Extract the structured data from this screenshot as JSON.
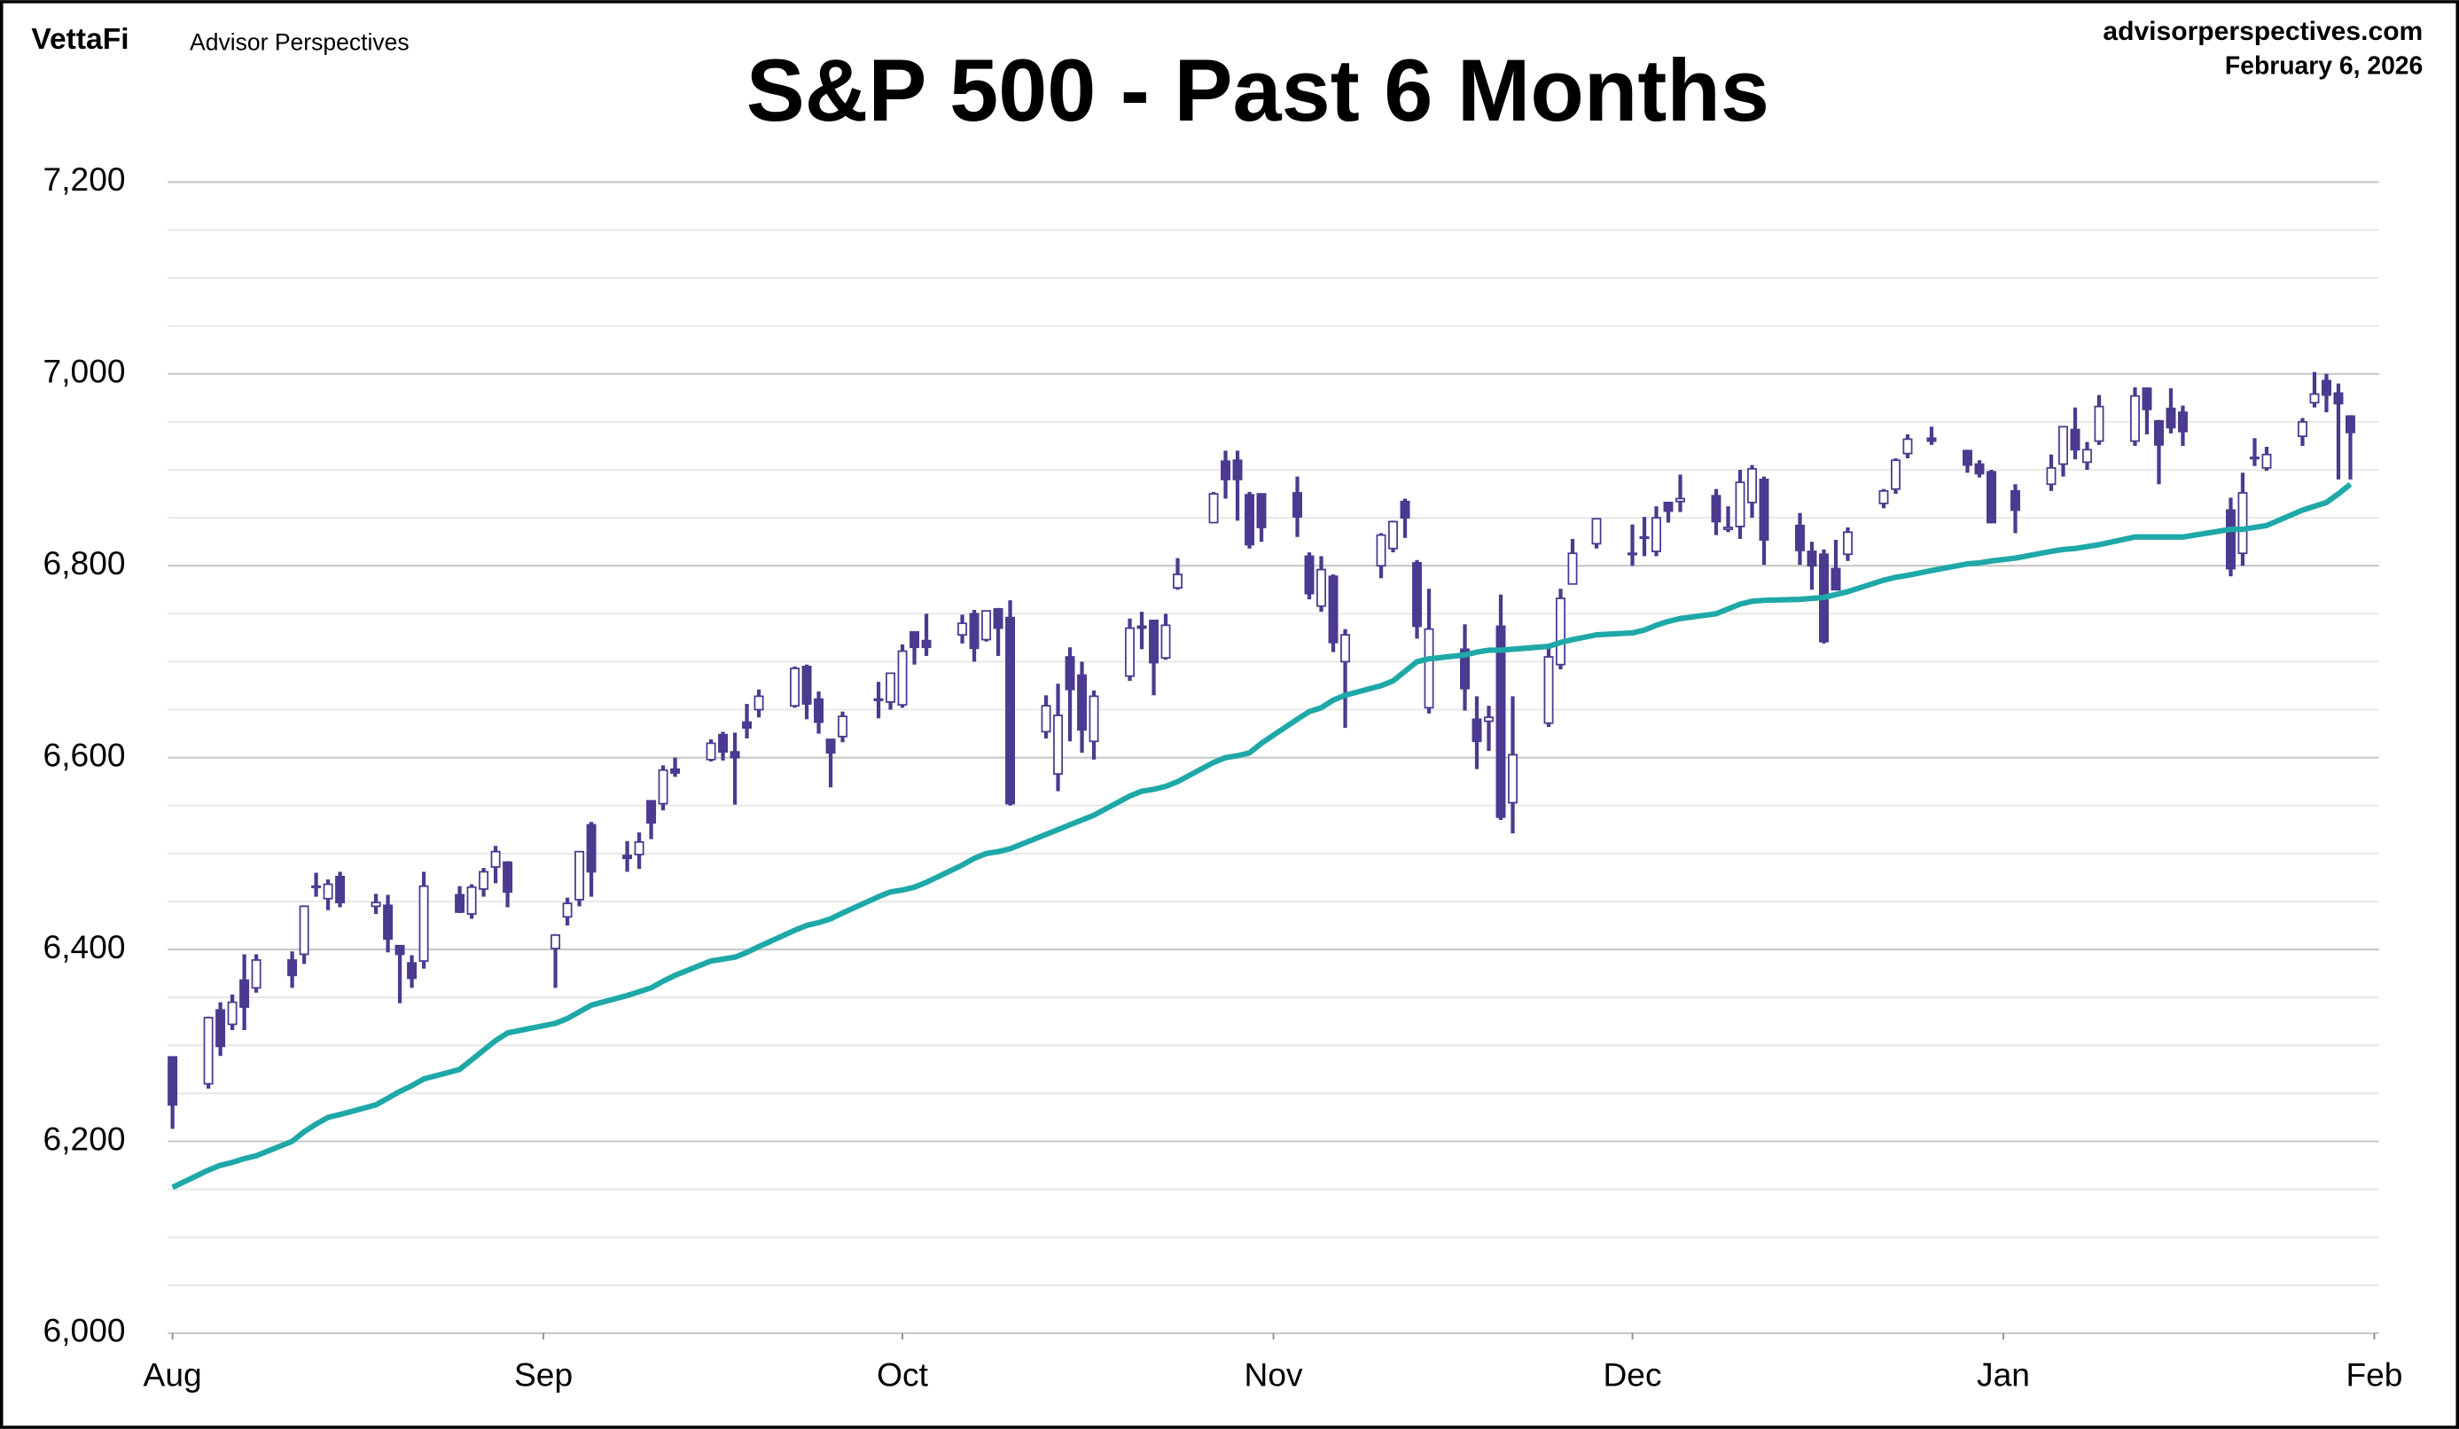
{
  "chart_data": {
    "type": "candlestick",
    "title": "S&P 500 - Past 6 Months",
    "brand": "VettaFi",
    "publisher": "Advisor Perspectives",
    "website": "advisorperspectives.com",
    "date": "February 6, 2026",
    "candle_color": "#4b3a8f",
    "x": [
      0,
      3,
      4,
      5,
      6,
      7,
      10,
      11,
      12,
      13,
      14,
      17,
      18,
      19,
      20,
      21,
      24,
      25,
      26,
      27,
      28,
      32,
      33,
      34,
      35,
      38,
      39,
      40,
      41,
      42,
      45,
      46,
      47,
      48,
      49,
      52,
      53,
      54,
      55,
      56,
      59,
      60,
      61,
      62,
      63,
      66,
      67,
      68,
      69,
      70,
      73,
      74,
      75,
      76,
      77,
      80,
      81,
      82,
      83,
      84,
      87,
      88,
      89,
      90,
      91,
      94,
      95,
      96,
      97,
      98,
      101,
      102,
      103,
      104,
      105,
      108,
      109,
      110,
      111,
      112,
      115,
      116,
      117,
      119,
      122,
      123,
      124,
      125,
      126,
      129,
      130,
      131,
      132,
      133,
      136,
      137,
      138,
      139,
      140,
      143,
      144,
      145,
      147,
      150,
      151,
      152,
      154,
      157,
      158,
      159,
      160,
      161,
      164,
      165,
      166,
      167,
      168,
      172,
      173,
      174,
      175,
      178,
      179,
      180,
      181,
      182
    ],
    "open": [
      6288,
      6260,
      6337,
      6322,
      6368,
      6360,
      6389,
      6395,
      6466,
      6453,
      6476,
      6445,
      6446,
      6404,
      6386,
      6388,
      6457,
      6437,
      6463,
      6486,
      6491,
      6401,
      6434,
      6452,
      6530,
      6498,
      6499,
      6555,
      6552,
      6588,
      6598,
      6624,
      6606,
      6637,
      6650,
      6654,
      6695,
      6661,
      6619,
      6622,
      6661,
      6658,
      6655,
      6731,
      6722,
      6728,
      6750,
      6723,
      6755,
      6746,
      6627,
      6583,
      6705,
      6686,
      6617,
      6685,
      6737,
      6743,
      6704,
      6777,
      6845,
      6909,
      6910,
      6874,
      6875,
      6876,
      6810,
      6758,
      6789,
      6700,
      6800,
      6818,
      6867,
      6803,
      6652,
      6713,
      6640,
      6638,
      6737,
      6553,
      6636,
      6697,
      6781,
      6823,
      6813,
      6830,
      6815,
      6866,
      6867,
      6873,
      6838,
      6841,
      6866,
      6890,
      6842,
      6815,
      6812,
      6797,
      6812,
      6865,
      6880,
      6917,
      6933,
      6920,
      6906,
      6898,
      6878,
      6885,
      6906,
      6942,
      6908,
      6930,
      6930,
      6985,
      6951,
      6964,
      6960,
      6858,
      6813,
      6912,
      6902,
      6935,
      6970,
      6993,
      6980,
      6956
    ],
    "high": [
      6288,
      6330,
      6345,
      6353,
      6395,
      6395,
      6398,
      6446,
      6480,
      6473,
      6481,
      6458,
      6457,
      6404,
      6394,
      6481,
      6466,
      6468,
      6485,
      6508,
      6492,
      6416,
      6454,
      6502,
      6533,
      6513,
      6522,
      6555,
      6592,
      6600,
      6619,
      6627,
      6626,
      6656,
      6671,
      6695,
      6697,
      6669,
      6619,
      6648,
      6679,
      6688,
      6718,
      6731,
      6750,
      6749,
      6754,
      6753,
      6756,
      6764,
      6665,
      6677,
      6715,
      6700,
      6670,
      6745,
      6752,
      6743,
      6750,
      6808,
      6877,
      6920,
      6920,
      6877,
      6875,
      6893,
      6814,
      6810,
      6791,
      6734,
      6834,
      6847,
      6870,
      6806,
      6776,
      6739,
      6664,
      6654,
      6770,
      6664,
      6715,
      6776,
      6828,
      6849,
      6843,
      6851,
      6862,
      6866,
      6895,
      6880,
      6862,
      6900,
      6905,
      6893,
      6855,
      6825,
      6817,
      6827,
      6840,
      6880,
      6912,
      6937,
      6945,
      6921,
      6910,
      6900,
      6885,
      6916,
      6945,
      6965,
      6929,
      6978,
      6986,
      6986,
      6952,
      6985,
      6967,
      6871,
      6897,
      6933,
      6924,
      6954,
      7002,
      7000,
      6990,
      6957
    ],
    "low": [
      6213,
      6255,
      6289,
      6316,
      6316,
      6355,
      6360,
      6385,
      6455,
      6441,
      6444,
      6437,
      6397,
      6344,
      6360,
      6380,
      6438,
      6432,
      6455,
      6469,
      6444,
      6360,
      6425,
      6445,
      6455,
      6481,
      6484,
      6515,
      6545,
      6580,
      6596,
      6597,
      6551,
      6620,
      6642,
      6652,
      6640,
      6625,
      6569,
      6616,
      6641,
      6650,
      6652,
      6697,
      6706,
      6719,
      6700,
      6721,
      6706,
      6550,
      6620,
      6565,
      6617,
      6605,
      6598,
      6680,
      6713,
      6665,
      6702,
      6775,
      6845,
      6870,
      6847,
      6818,
      6825,
      6830,
      6765,
      6752,
      6710,
      6631,
      6787,
      6814,
      6829,
      6724,
      6646,
      6649,
      6588,
      6607,
      6535,
      6521,
      6632,
      6692,
      6781,
      6818,
      6800,
      6810,
      6810,
      6845,
      6856,
      6832,
      6835,
      6828,
      6850,
      6801,
      6801,
      6775,
      6719,
      6775,
      6805,
      6860,
      6875,
      6912,
      6926,
      6897,
      6892,
      6845,
      6834,
      6878,
      6893,
      6911,
      6900,
      6926,
      6925,
      6937,
      6885,
      6938,
      6925,
      6789,
      6800,
      6904,
      6899,
      6925,
      6965,
      6960,
      6890,
      6890
    ],
    "close": [
      6238,
      6329,
      6299,
      6345,
      6340,
      6389,
      6373,
      6445,
      6466,
      6468,
      6449,
      6449,
      6411,
      6395,
      6370,
      6466,
      6439,
      6465,
      6481,
      6502,
      6460,
      6415,
      6448,
      6502,
      6481,
      6495,
      6512,
      6532,
      6587,
      6584,
      6615,
      6606,
      6600,
      6631,
      6664,
      6693,
      6656,
      6637,
      6605,
      6643,
      6661,
      6688,
      6711,
      6715,
      6715,
      6740,
      6714,
      6753,
      6735,
      6552,
      6654,
      6644,
      6671,
      6629,
      6664,
      6735,
      6735,
      6699,
      6738,
      6791,
      6875,
      6890,
      6890,
      6822,
      6840,
      6851,
      6771,
      6796,
      6720,
      6728,
      6832,
      6846,
      6850,
      6737,
      6734,
      6672,
      6617,
      6642,
      6538,
      6603,
      6705,
      6766,
      6813,
      6849,
      6812,
      6829,
      6850,
      6857,
      6870,
      6846,
      6840,
      6887,
      6901,
      6827,
      6816,
      6800,
      6721,
      6775,
      6835,
      6878,
      6910,
      6932,
      6930,
      6905,
      6896,
      6845,
      6858,
      6902,
      6945,
      6921,
      6921,
      6966,
      6977,
      6963,
      6926,
      6944,
      6940,
      6797,
      6876,
      6913,
      6916,
      6950,
      6979,
      6978,
      6969,
      6939
    ],
    "moving_average": {
      "color": "#1fa8a8",
      "values": [
        6152,
        6170,
        6175,
        6178,
        6182,
        6185,
        6200,
        6210,
        6218,
        6225,
        6228,
        6238,
        6245,
        6252,
        6258,
        6265,
        6275,
        6285,
        6295,
        6305,
        6313,
        6323,
        6328,
        6335,
        6342,
        6352,
        6356,
        6360,
        6367,
        6373,
        6388,
        6390,
        6392,
        6397,
        6403,
        6420,
        6425,
        6428,
        6432,
        6438,
        6455,
        6460,
        6462,
        6465,
        6470,
        6488,
        6495,
        6500,
        6502,
        6505,
        6520,
        6525,
        6530,
        6535,
        6540,
        6560,
        6565,
        6567,
        6570,
        6575,
        6595,
        6600,
        6602,
        6605,
        6615,
        6640,
        6648,
        6652,
        6660,
        6665,
        6675,
        6680,
        6690,
        6700,
        6703,
        6707,
        6710,
        6712,
        6712,
        6713,
        6716,
        6720,
        6723,
        6728,
        6730,
        6733,
        6738,
        6742,
        6745,
        6750,
        6755,
        6760,
        6763,
        6764,
        6765,
        6766,
        6767,
        6770,
        6773,
        6785,
        6788,
        6790,
        6795,
        6802,
        6803,
        6805,
        6808,
        6815,
        6817,
        6818,
        6820,
        6822,
        6830,
        6830,
        6830,
        6830,
        6830,
        6838,
        6838,
        6840,
        6842,
        6858,
        6862,
        6866,
        6875,
        6885
      ]
    },
    "xlim": [
      0,
      184
    ],
    "xticks": [
      {
        "value": 0,
        "label": "Aug"
      },
      {
        "value": 31,
        "label": "Sep"
      },
      {
        "value": 61,
        "label": "Oct"
      },
      {
        "value": 92,
        "label": "Nov"
      },
      {
        "value": 122,
        "label": "Dec"
      },
      {
        "value": 153,
        "label": "Jan"
      },
      {
        "value": 184,
        "label": "Feb"
      }
    ],
    "ylim": [
      6000,
      7200
    ],
    "yticks": [
      {
        "value": 6000,
        "label": "6,000"
      },
      {
        "value": 6200,
        "label": "6,200"
      },
      {
        "value": 6400,
        "label": "6,400"
      },
      {
        "value": 6600,
        "label": "6,600"
      },
      {
        "value": 6800,
        "label": "6,800"
      },
      {
        "value": 7000,
        "label": "7,000"
      },
      {
        "value": 7200,
        "label": "7,200"
      }
    ],
    "minor_yticks": [
      6050,
      6100,
      6150,
      6250,
      6300,
      6350,
      6450,
      6500,
      6550,
      6650,
      6700,
      6750,
      6850,
      6900,
      6950,
      7050,
      7100,
      7150
    ],
    "grid": true
  }
}
